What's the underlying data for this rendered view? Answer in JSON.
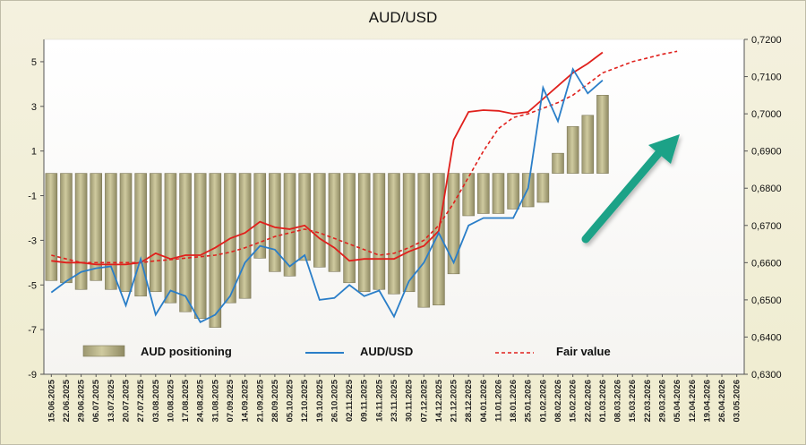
{
  "chart_data": {
    "type": "bar+line",
    "title": "AUD/USD",
    "x_tick_labels": [
      "15.06.2025",
      "22.06.2025",
      "29.06.2025",
      "06.07.2025",
      "13.07.2025",
      "20.07.2025",
      "27.07.2025",
      "03.08.2025",
      "10.08.2025",
      "17.08.2025",
      "24.08.2025",
      "31.08.2025",
      "07.09.2025",
      "14.09.2025",
      "21.09.2025",
      "28.09.2025",
      "05.10.2025",
      "12.10.2025",
      "19.10.2025",
      "26.10.2025",
      "02.11.2025",
      "09.11.2025",
      "16.11.2025",
      "23.11.2025",
      "30.11.2025",
      "07.12.2025",
      "14.12.2025",
      "21.12.2025",
      "28.12.2025",
      "04.01.2026",
      "11.01.2026",
      "18.01.2026",
      "25.01.2026",
      "01.02.2026",
      "08.02.2026",
      "15.02.2026",
      "22.02.2026",
      "01.03.2026",
      "08.03.2026",
      "15.03.2026",
      "22.03.2026",
      "29.03.2026",
      "05.04.2026",
      "12.04.2026",
      "19.04.2026",
      "26.04.2026",
      "03.05.2026"
    ],
    "left_axis": {
      "ticks": [
        "-9",
        "-7",
        "-5",
        "-3",
        "-1",
        "1",
        "3",
        "5"
      ],
      "ylim": [
        -9,
        6
      ]
    },
    "right_axis": {
      "ticks": [
        "0,6300",
        "0,6400",
        "0,6500",
        "0,6600",
        "0,6700",
        "0,6800",
        "0,6900",
        "0,7000",
        "0,7100",
        "0,7200"
      ],
      "ylim": [
        0.63,
        0.72
      ]
    },
    "legend": {
      "placement": "bottom-left"
    },
    "series": [
      {
        "name": "AUD positioning",
        "type": "bar",
        "axis": "left",
        "color": "#b8b38c",
        "values": [
          -4.8,
          -4.9,
          -5.2,
          -4.8,
          -5.2,
          -5.3,
          -5.5,
          -5.3,
          -5.8,
          -6.2,
          -6.5,
          -6.9,
          -5.8,
          -5.6,
          -3.8,
          -4.4,
          -4.6,
          -3.9,
          -4.2,
          -4.4,
          -4.9,
          -5.3,
          -5.2,
          -5.4,
          -5.3,
          -6.0,
          -5.9,
          -4.5,
          -1.9,
          -1.8,
          -1.8,
          -1.6,
          -1.5,
          -1.3,
          0.9,
          2.1,
          2.6,
          3.5
        ]
      },
      {
        "name": "AUD/USD",
        "type": "line",
        "axis": "right",
        "color": "#2a7ec8",
        "values": [
          0.652,
          0.655,
          0.6575,
          0.6585,
          0.659,
          0.6485,
          0.661,
          0.646,
          0.6525,
          0.651,
          0.644,
          0.646,
          0.651,
          0.66,
          0.6645,
          0.6635,
          0.659,
          0.662,
          0.65,
          0.6505,
          0.654,
          0.651,
          0.6525,
          0.6455,
          0.655,
          0.66,
          0.668,
          0.66,
          0.67,
          0.672,
          0.672,
          0.672,
          0.68,
          0.707,
          0.698,
          0.712,
          0.7055,
          0.709
        ]
      },
      {
        "name": "Fair value",
        "type": "line",
        "axis": "right",
        "color": "#e0201c",
        "values": [
          0.6605,
          0.66,
          0.66,
          0.6595,
          0.6595,
          0.6595,
          0.66,
          0.6625,
          0.661,
          0.662,
          0.662,
          0.664,
          0.6665,
          0.668,
          0.671,
          0.6695,
          0.669,
          0.67,
          0.6665,
          0.664,
          0.6605,
          0.661,
          0.661,
          0.661,
          0.663,
          0.6645,
          0.6685,
          0.693,
          0.7005,
          0.701,
          0.7008,
          0.7,
          0.7005,
          0.704,
          0.7075,
          0.711,
          0.7135,
          0.7165
        ]
      },
      {
        "name": "Fair value",
        "type": "dashed-line",
        "axis": "right",
        "color": "#e0201c",
        "values": [
          0.662,
          0.661,
          0.66,
          0.66,
          0.66,
          0.66,
          0.66,
          0.6605,
          0.6608,
          0.6612,
          0.6616,
          0.662,
          0.6628,
          0.664,
          0.6655,
          0.667,
          0.668,
          0.669,
          0.668,
          0.6665,
          0.665,
          0.6635,
          0.662,
          0.6625,
          0.664,
          0.666,
          0.67,
          0.676,
          0.683,
          0.69,
          0.696,
          0.699,
          0.7,
          0.7015,
          0.703,
          0.705,
          0.708,
          0.711,
          0.7125,
          0.714,
          0.715,
          0.716,
          0.7168
        ]
      }
    ],
    "annotation": {
      "type": "arrow",
      "color": "#1aa287",
      "direction": "up-right"
    }
  }
}
